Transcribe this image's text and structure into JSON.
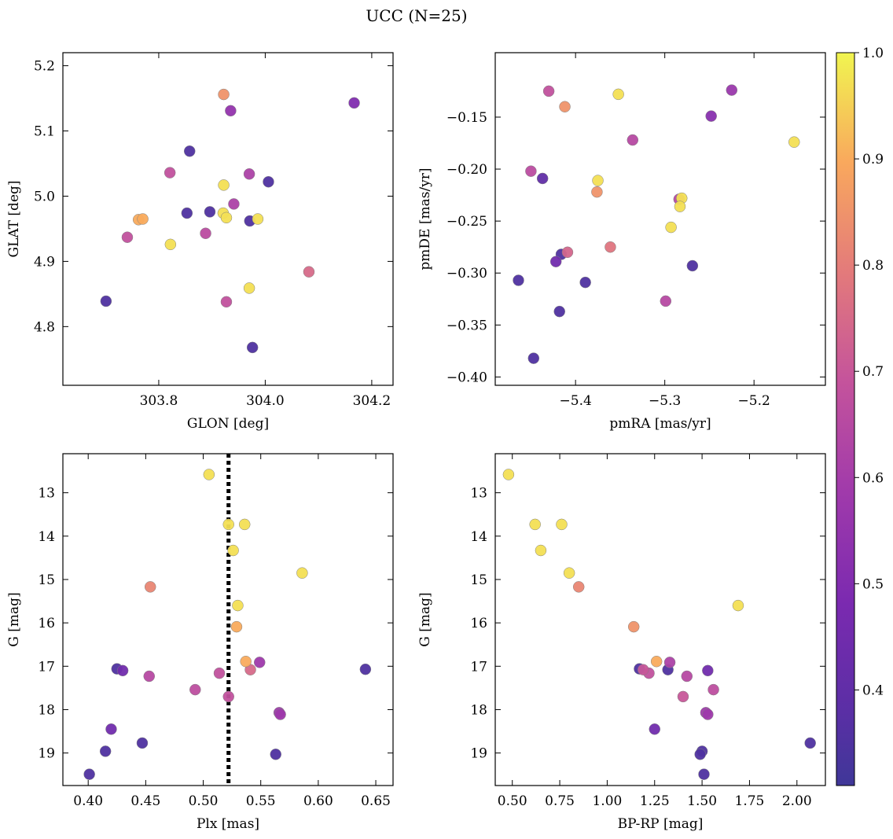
{
  "figure": {
    "title": "UCC (N=25)"
  },
  "colorbar": {
    "cmap": "plasma",
    "vmin": 0.31,
    "vmax": 1.0,
    "ticks": [
      0.4,
      0.5,
      0.6,
      0.7,
      0.8,
      0.9,
      1.0
    ],
    "tick_labels": [
      "0.4",
      "0.5",
      "0.6",
      "0.7",
      "0.8",
      "0.9",
      "1.0"
    ]
  },
  "chart_data": [
    {
      "type": "scatter",
      "xlabel": "GLON [deg]",
      "ylabel": "GLAT [deg]",
      "xlim": [
        303.62,
        304.24
      ],
      "ylim": [
        4.71,
        5.22
      ],
      "y_inverted": false,
      "xticks": [
        303.8,
        304.0,
        304.2
      ],
      "xtick_labels": [
        "303.8",
        "304.0",
        "304.2"
      ],
      "yticks": [
        4.8,
        4.9,
        5.0,
        5.1,
        5.2
      ],
      "ytick_labels": [
        "4.8",
        "4.9",
        "5.0",
        "5.1",
        "5.2"
      ],
      "x": [
        303.922,
        304.167,
        303.935,
        303.858,
        303.821,
        303.97,
        304.006,
        303.922,
        303.941,
        303.896,
        303.853,
        303.921,
        303.927,
        303.762,
        303.77,
        303.986,
        303.971,
        303.741,
        303.888,
        303.822,
        304.082,
        303.701,
        303.927,
        303.97,
        303.976
      ],
      "y": [
        5.156,
        5.143,
        5.131,
        5.069,
        5.036,
        5.034,
        5.022,
        5.017,
        4.988,
        4.976,
        4.974,
        4.974,
        4.967,
        4.964,
        4.965,
        4.965,
        4.962,
        4.937,
        4.943,
        4.926,
        4.884,
        4.839,
        4.838,
        4.859,
        4.768
      ],
      "prob": [
        0.85,
        0.5,
        0.55,
        0.35,
        0.68,
        0.62,
        0.35,
        0.97,
        0.62,
        0.35,
        0.35,
        0.97,
        0.97,
        0.9,
        0.9,
        0.97,
        0.35,
        0.68,
        0.66,
        0.97,
        0.75,
        0.35,
        0.68,
        0.97,
        0.35
      ]
    },
    {
      "type": "scatter",
      "xlabel": "pmRA [mas/yr]",
      "ylabel": "pmDE [mas/yr]",
      "xlim": [
        -5.49,
        -5.12
      ],
      "ylim": [
        -0.408,
        -0.088
      ],
      "y_inverted": false,
      "xticks": [
        -5.4,
        -5.3,
        -5.2
      ],
      "xtick_labels": [
        "−5.4",
        "−5.3",
        "−5.2"
      ],
      "yticks": [
        -0.4,
        -0.35,
        -0.3,
        -0.25,
        -0.2,
        -0.15
      ],
      "ytick_labels": [
        "−0.40",
        "−0.35",
        "−0.30",
        "−0.25",
        "−0.20",
        "−0.15"
      ],
      "x": [
        -5.43,
        -5.225,
        -5.352,
        -5.412,
        -5.248,
        -5.336,
        -5.155,
        -5.45,
        -5.437,
        -5.375,
        -5.376,
        -5.284,
        -5.281,
        -5.283,
        -5.293,
        -5.361,
        -5.409,
        -5.416,
        -5.422,
        -5.269,
        -5.464,
        -5.389,
        -5.418,
        -5.299,
        -5.447
      ],
      "y": [
        -0.125,
        -0.124,
        -0.128,
        -0.14,
        -0.149,
        -0.172,
        -0.174,
        -0.202,
        -0.209,
        -0.211,
        -0.222,
        -0.229,
        -0.228,
        -0.236,
        -0.256,
        -0.275,
        -0.28,
        -0.282,
        -0.289,
        -0.293,
        -0.307,
        -0.309,
        -0.337,
        -0.327,
        -0.382
      ],
      "prob": [
        0.68,
        0.57,
        0.97,
        0.85,
        0.52,
        0.65,
        0.97,
        0.66,
        0.4,
        0.97,
        0.85,
        0.65,
        0.97,
        0.97,
        0.97,
        0.78,
        0.74,
        0.35,
        0.45,
        0.35,
        0.35,
        0.35,
        0.35,
        0.65,
        0.35
      ]
    },
    {
      "type": "scatter",
      "xlabel": "Plx [mas]",
      "ylabel": "G [mag]",
      "xlim": [
        0.378,
        0.665
      ],
      "ylim": [
        19.75,
        12.1
      ],
      "y_inverted": true,
      "vline": {
        "x": 0.522,
        "style": "dotted",
        "color": "#000000"
      },
      "xticks": [
        0.4,
        0.45,
        0.5,
        0.55,
        0.6,
        0.65
      ],
      "xtick_labels": [
        "0.40",
        "0.45",
        "0.50",
        "0.55",
        "0.60",
        "0.65"
      ],
      "yticks": [
        13,
        14,
        15,
        16,
        17,
        18,
        19
      ],
      "ytick_labels": [
        "13",
        "14",
        "15",
        "16",
        "17",
        "18",
        "19"
      ],
      "x": [
        0.505,
        0.522,
        0.536,
        0.526,
        0.586,
        0.454,
        0.53,
        0.529,
        0.537,
        0.549,
        0.425,
        0.43,
        0.641,
        0.541,
        0.514,
        0.453,
        0.493,
        0.522,
        0.566,
        0.567,
        0.42,
        0.447,
        0.415,
        0.563,
        0.401
      ],
      "y": [
        12.58,
        13.73,
        13.73,
        14.33,
        14.85,
        15.17,
        15.6,
        16.09,
        16.89,
        16.91,
        17.06,
        17.1,
        17.07,
        17.08,
        17.16,
        17.23,
        17.54,
        17.7,
        18.07,
        18.11,
        18.45,
        18.77,
        18.96,
        19.03,
        19.49
      ],
      "prob": [
        0.97,
        0.97,
        0.97,
        0.97,
        0.97,
        0.82,
        0.97,
        0.9,
        0.9,
        0.58,
        0.35,
        0.45,
        0.35,
        0.75,
        0.68,
        0.65,
        0.67,
        0.68,
        0.58,
        0.58,
        0.45,
        0.35,
        0.35,
        0.35,
        0.35
      ]
    },
    {
      "type": "scatter",
      "xlabel": "BP-RP [mag]",
      "ylabel": "G [mag]",
      "xlim": [
        0.41,
        2.15
      ],
      "ylim": [
        19.75,
        12.1
      ],
      "y_inverted": true,
      "xticks": [
        0.5,
        0.75,
        1.0,
        1.25,
        1.5,
        1.75,
        2.0
      ],
      "xtick_labels": [
        "0.50",
        "0.75",
        "1.00",
        "1.25",
        "1.50",
        "1.75",
        "2.00"
      ],
      "yticks": [
        13,
        14,
        15,
        16,
        17,
        18,
        19
      ],
      "ytick_labels": [
        "13",
        "14",
        "15",
        "16",
        "17",
        "18",
        "19"
      ],
      "x": [
        0.48,
        0.62,
        0.76,
        0.65,
        0.8,
        0.85,
        1.69,
        1.14,
        1.26,
        1.33,
        1.17,
        1.32,
        1.53,
        1.19,
        1.22,
        1.42,
        1.56,
        1.4,
        1.52,
        1.53,
        1.25,
        2.07,
        1.5,
        1.49,
        1.51
      ],
      "y": [
        12.58,
        13.73,
        13.73,
        14.33,
        14.85,
        15.17,
        15.6,
        16.09,
        16.89,
        16.91,
        17.06,
        17.08,
        17.1,
        17.08,
        17.16,
        17.23,
        17.54,
        17.7,
        18.07,
        18.11,
        18.45,
        18.77,
        18.96,
        19.03,
        19.49
      ],
      "prob": [
        0.97,
        0.97,
        0.97,
        0.97,
        0.97,
        0.82,
        0.97,
        0.85,
        0.9,
        0.62,
        0.35,
        0.35,
        0.45,
        0.7,
        0.68,
        0.65,
        0.67,
        0.7,
        0.58,
        0.58,
        0.45,
        0.35,
        0.35,
        0.35,
        0.35
      ]
    }
  ]
}
